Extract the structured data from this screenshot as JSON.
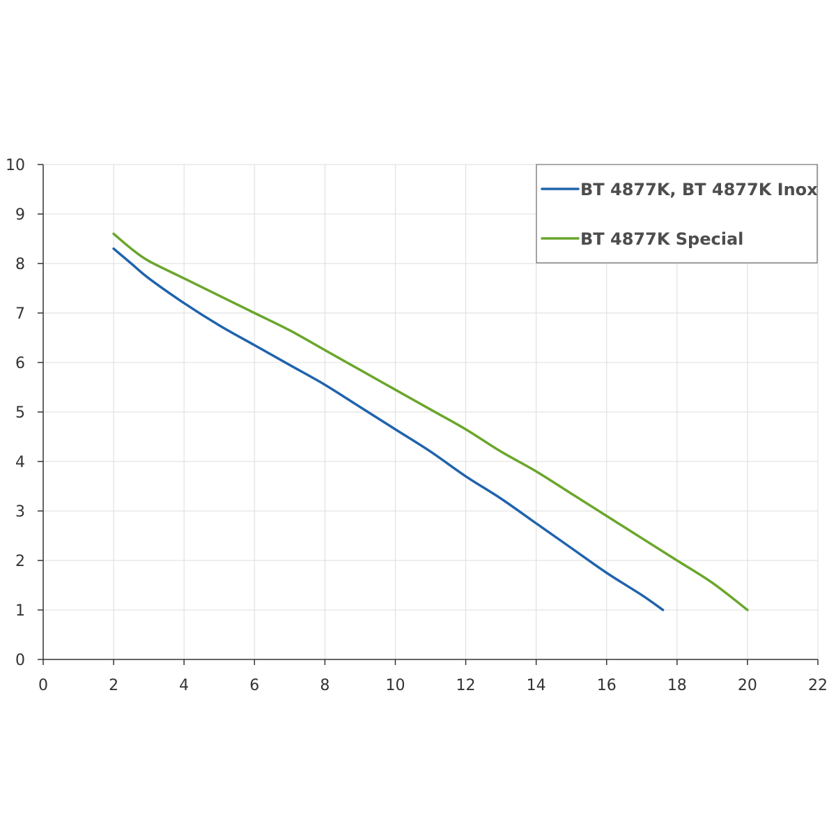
{
  "chart_data": {
    "type": "line",
    "title": "",
    "xlabel": "",
    "ylabel": "",
    "xlim": [
      0,
      22
    ],
    "ylim": [
      0,
      10
    ],
    "x_ticks": [
      "0",
      "2",
      "4",
      "6",
      "8",
      "10",
      "12",
      "14",
      "16",
      "18",
      "20",
      "22"
    ],
    "y_ticks": [
      "0",
      "1",
      "2",
      "3",
      "4",
      "5",
      "6",
      "7",
      "8",
      "9",
      "10"
    ],
    "grid": true,
    "legend_position": "top-right",
    "series": [
      {
        "name": "BT 4877K, BT 4877K Inox",
        "color": "#1f63ad",
        "x": [
          2,
          2.5,
          3,
          4,
          5,
          6,
          7,
          8,
          9,
          10,
          11,
          12,
          13,
          14,
          15,
          16,
          17,
          17.6
        ],
        "y": [
          8.3,
          8.0,
          7.7,
          7.2,
          6.75,
          6.35,
          5.95,
          5.55,
          5.1,
          4.65,
          4.2,
          3.7,
          3.25,
          2.75,
          2.25,
          1.75,
          1.3,
          1.0
        ]
      },
      {
        "name": "BT 4877K Special",
        "color": "#6aa62b",
        "x": [
          2,
          2.5,
          3,
          4,
          5,
          6,
          7,
          8,
          9,
          10,
          11,
          12,
          13,
          14,
          15,
          16,
          17,
          18,
          19,
          20
        ],
        "y": [
          8.6,
          8.3,
          8.05,
          7.7,
          7.35,
          7.0,
          6.65,
          6.25,
          5.85,
          5.45,
          5.05,
          4.65,
          4.2,
          3.8,
          3.35,
          2.9,
          2.45,
          2.0,
          1.55,
          1.0
        ]
      }
    ]
  }
}
